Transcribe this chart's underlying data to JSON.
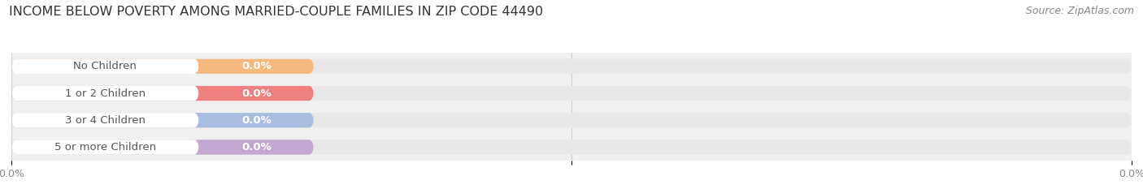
{
  "title": "INCOME BELOW POVERTY AMONG MARRIED-COUPLE FAMILIES IN ZIP CODE 44490",
  "source": "Source: ZipAtlas.com",
  "categories": [
    "No Children",
    "1 or 2 Children",
    "3 or 4 Children",
    "5 or more Children"
  ],
  "values": [
    0.0,
    0.0,
    0.0,
    0.0
  ],
  "bar_colors": [
    "#f5b97f",
    "#f08080",
    "#a8bde0",
    "#c3a8d1"
  ],
  "bar_bg_color": "#e8e8e8",
  "bar_text_inside": [
    "0.0%",
    "0.0%",
    "0.0%",
    "0.0%"
  ],
  "xlim_max": 100,
  "xtick_positions": [
    0.0,
    50.0,
    100.0
  ],
  "xtick_labels": [
    "0.0%",
    "",
    "0.0%"
  ],
  "title_fontsize": 11.5,
  "source_fontsize": 9,
  "cat_fontsize": 9.5,
  "val_fontsize": 9.5,
  "tick_fontsize": 9,
  "bg_color": "#ffffff",
  "plot_bg_color": "#f0f0f0",
  "grid_color": "#d0d0d0",
  "label_bg_color": "#ffffff"
}
